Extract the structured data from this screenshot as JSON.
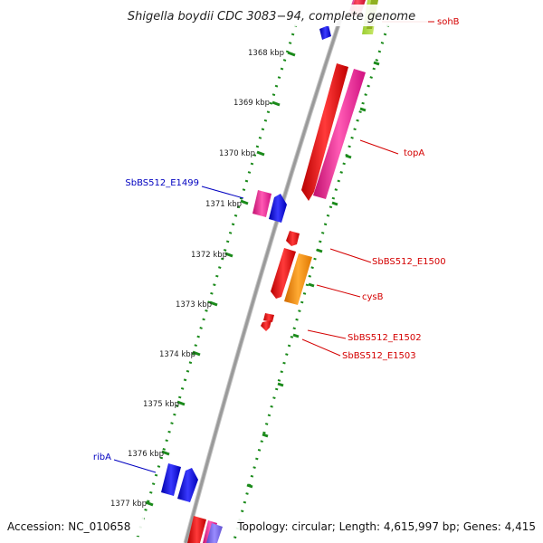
{
  "title": "Shigella boydii CDC 3083−94, complete genome",
  "footer": {
    "accession": "Accession: NC_010658",
    "summary": "Topology: circular; Length: 4,615,997 bp; Genes: 4,415"
  },
  "ticks": [
    "1368 kbp",
    "1369 kbp",
    "1370 kbp",
    "1371 kbp",
    "1372 kbp",
    "1373 kbp",
    "1374 kbp",
    "1375 kbp",
    "1376 kbp",
    "1377 kbp"
  ],
  "labels": {
    "sohB": "sohB",
    "topA": "topA",
    "SbBS512_E1500": "SbBS512_E1500",
    "cysB": "cysB",
    "SbBS512_E1502": "SbBS512_E1502",
    "SbBS512_E1503": "SbBS512_E1503",
    "SbBS512_E1499": "SbBS512_E1499",
    "ribA": "ribA"
  },
  "colors": {
    "forward_label": "#d40000",
    "reverse_label": "#0000c0",
    "red": "#ff0000",
    "pink": "#ff1493",
    "orange": "#ff8c00",
    "blue": "#0000ee",
    "slate": "#7b68ee",
    "backbone": "#888888",
    "ring": "#1a8a1a"
  }
}
